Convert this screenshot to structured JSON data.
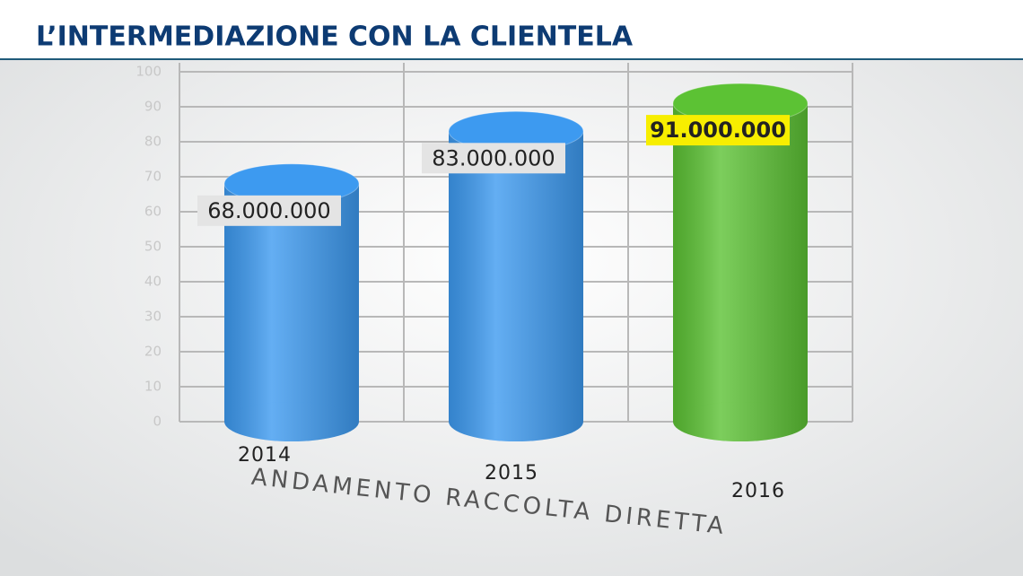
{
  "chart_data": {
    "type": "bar",
    "title": "L’INTERMEDIAZIONE CON LA CLIENTELA",
    "x_label": "ANDAMENTO RACCOLTA DIRETTA",
    "categories": [
      "2014",
      "2015",
      "2016"
    ],
    "values": [
      68,
      83,
      91
    ],
    "value_labels": [
      "68.000.000",
      "83.000.000",
      "91.000.000"
    ],
    "colors": [
      "#3d9af0",
      "#3d9af0",
      "#5cc234"
    ],
    "label_backgrounds": [
      "#e4e4e4",
      "#e4e4e4",
      "#f7ee00"
    ],
    "ylim": [
      0,
      100
    ],
    "yticks": [
      0,
      10,
      20,
      30,
      40,
      50,
      60,
      70,
      80,
      90,
      100
    ],
    "grid": true
  }
}
